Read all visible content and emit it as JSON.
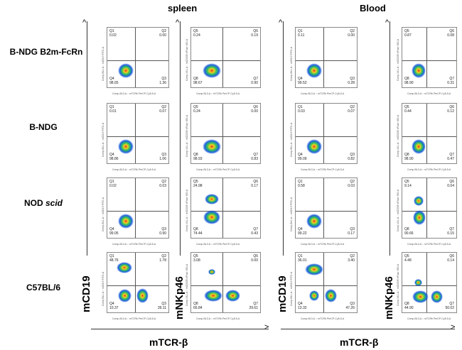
{
  "titles": {
    "spleen": "spleen",
    "blood": "Blood"
  },
  "row_labels": [
    "B-NDG B2m-FcRn",
    "B-NDG",
    "NOD",
    "C57BL/6"
  ],
  "row_label_suffix": {
    "nod": "scid"
  },
  "axis_labels": {
    "y1": "mCD19",
    "y2": "mNKp46",
    "y3": "mCD19",
    "y4": "mNKp46",
    "x1": "mTCR-β",
    "x2": "mTCR-β"
  },
  "plot_axis_text": {
    "x": "Comp-BL3-A :: mTCRb PerCP-Cy5-5-A",
    "y_cd19": "Comp-BL1-A :: mCD19 FITC-A",
    "y_nkp46": "Comp-VL1-A :: mCD335 eFluor 450-A"
  },
  "columns": [
    {
      "tissue": "spleen",
      "marker": "mCD19",
      "quadrants": [
        "Q1",
        "Q2",
        "Q4",
        "Q3"
      ],
      "values": [
        [
          "0.02",
          "0.00",
          "98.65",
          "1.36"
        ],
        [
          "0.01",
          "0.07",
          "98.86",
          "1.06"
        ],
        [
          "0.02",
          "0.03",
          "99.05",
          "0.90"
        ],
        [
          "48.76",
          "1.78",
          "10.37",
          "39.11"
        ]
      ]
    },
    {
      "tissue": "spleen",
      "marker": "mNKp46",
      "quadrants": [
        "Q5",
        "Q6",
        "Q8",
        "Q7"
      ],
      "values": [
        [
          "0.24",
          "0.19",
          "98.67",
          "0.90"
        ],
        [
          "0.24",
          "0.00",
          "98.93",
          "0.83"
        ],
        [
          "24.98",
          "0.17",
          "74.44",
          "0.43"
        ],
        [
          "3.08",
          "0.00",
          "66.84",
          "29.61"
        ]
      ]
    },
    {
      "tissue": "blood",
      "marker": "mCD19",
      "quadrants": [
        "Q1",
        "Q2",
        "Q4",
        "Q3"
      ],
      "values": [
        [
          "0.11",
          "0.00",
          "99.52",
          "0.28"
        ],
        [
          "0.03",
          "0.07",
          "99.09",
          "0.82"
        ],
        [
          "0.58",
          "0.03",
          "99.22",
          "0.17"
        ],
        [
          "36.01",
          "3.40",
          "13.32",
          "47.26"
        ]
      ]
    },
    {
      "tissue": "blood",
      "marker": "mNKp46",
      "quadrants": [
        "Q5",
        "Q6",
        "Q8",
        "Q7"
      ],
      "values": [
        [
          "0.87",
          "0.08",
          "98.90",
          "0.31"
        ],
        [
          "0.44",
          "0.12",
          "98.90",
          "0.47"
        ],
        [
          "9.14",
          "0.04",
          "90.66",
          "0.15"
        ],
        [
          "4.48",
          "0.14",
          "44.90",
          "50.02"
        ]
      ]
    }
  ]
}
